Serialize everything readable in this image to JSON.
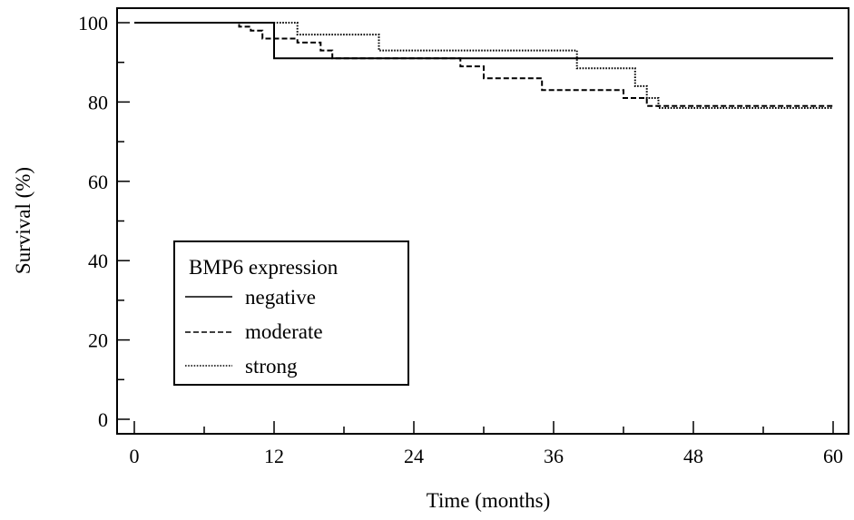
{
  "chart_data": {
    "type": "line",
    "title": "",
    "xlabel": "Time (months)",
    "ylabel": "Survival (%)",
    "xlim": [
      0,
      60
    ],
    "ylim": [
      0,
      100
    ],
    "x_ticks": [
      0,
      12,
      24,
      36,
      48,
      60
    ],
    "y_ticks": [
      0,
      20,
      40,
      60,
      80,
      100
    ],
    "grid": false,
    "legend": {
      "title": "BMP6 expression",
      "placement": "center-left"
    },
    "series": [
      {
        "name": "negative",
        "style": "solid",
        "step_points": [
          [
            0,
            100
          ],
          [
            12,
            100
          ],
          [
            12,
            91
          ],
          [
            60,
            91
          ]
        ]
      },
      {
        "name": "moderate",
        "style": "dashed",
        "step_points": [
          [
            0,
            100
          ],
          [
            9,
            100
          ],
          [
            9,
            99
          ],
          [
            10,
            99
          ],
          [
            10,
            98
          ],
          [
            11,
            98
          ],
          [
            11,
            96
          ],
          [
            14,
            96
          ],
          [
            14,
            95
          ],
          [
            16,
            95
          ],
          [
            16,
            93
          ],
          [
            17,
            93
          ],
          [
            17,
            91
          ],
          [
            28,
            91
          ],
          [
            28,
            89
          ],
          [
            30,
            89
          ],
          [
            30,
            86
          ],
          [
            35,
            86
          ],
          [
            35,
            83
          ],
          [
            42,
            83
          ],
          [
            42,
            81
          ],
          [
            44,
            81
          ],
          [
            44,
            79
          ],
          [
            60,
            79
          ]
        ]
      },
      {
        "name": "strong",
        "style": "dotted",
        "step_points": [
          [
            0,
            100
          ],
          [
            14,
            100
          ],
          [
            14,
            97
          ],
          [
            21,
            97
          ],
          [
            21,
            93
          ],
          [
            38,
            93
          ],
          [
            38,
            88.5
          ],
          [
            43,
            88.5
          ],
          [
            43,
            84
          ],
          [
            44,
            84
          ],
          [
            44,
            81
          ],
          [
            45,
            81
          ],
          [
            45,
            78.5
          ],
          [
            60,
            78.5
          ]
        ]
      }
    ]
  }
}
